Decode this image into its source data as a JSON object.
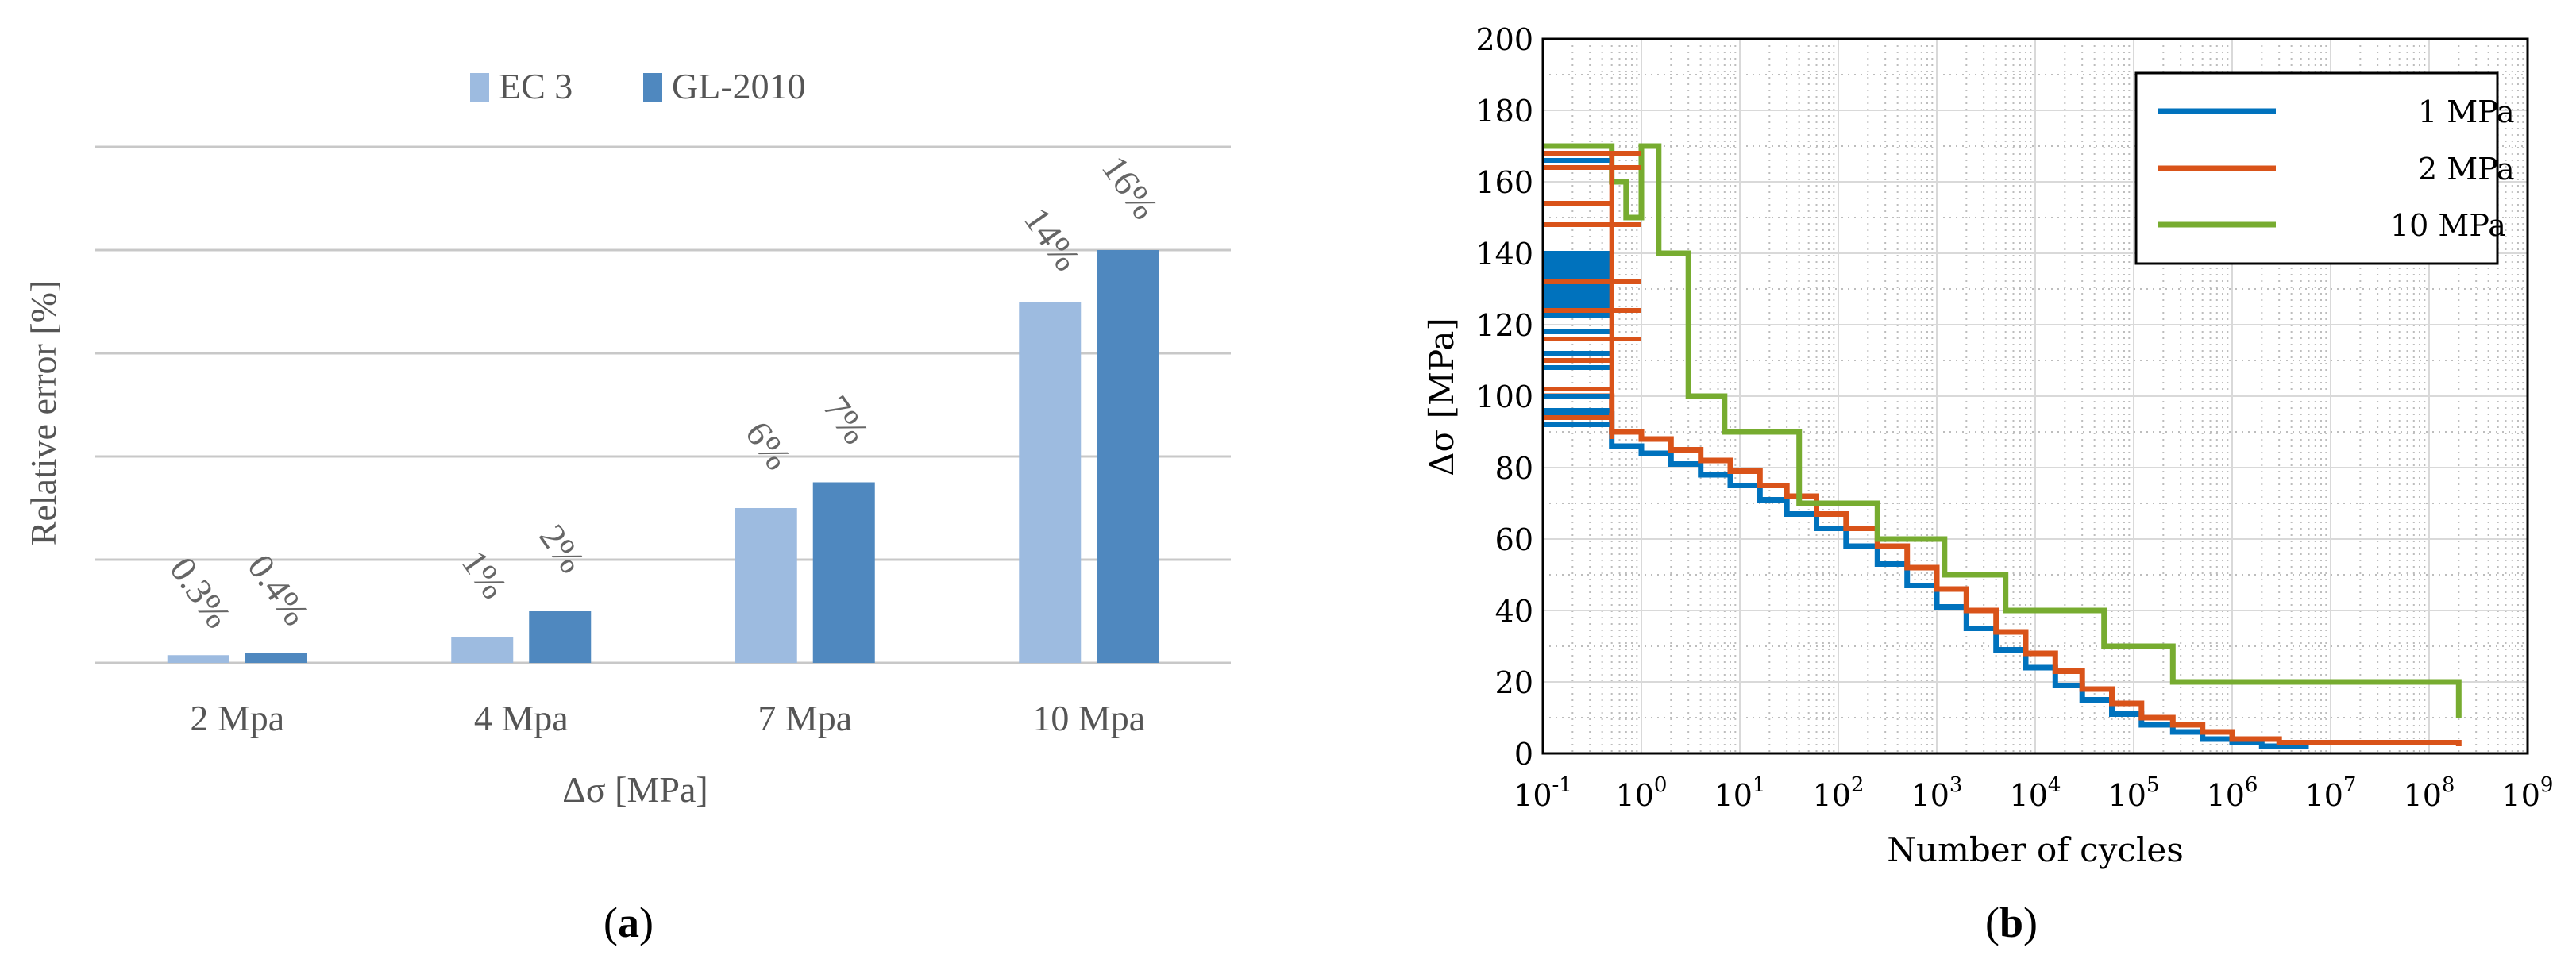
{
  "chart_data": [
    {
      "type": "bar",
      "panel_label": "a",
      "title": "",
      "xlabel": "Δσ [MPa]",
      "ylabel": "Relative error [%]",
      "ylim": [
        0,
        20
      ],
      "gridlines": [
        0,
        4,
        8,
        12,
        16,
        20
      ],
      "categories": [
        "2 Mpa",
        "4 Mpa",
        "7 Mpa",
        "10 Mpa"
      ],
      "legend_position": "top-center",
      "series": [
        {
          "name": "EC 3",
          "color": "#9dbbe0",
          "values": [
            0.3,
            1,
            6,
            14
          ],
          "labels": [
            "0.3%",
            "1%",
            "6%",
            "14%"
          ]
        },
        {
          "name": "GL-2010",
          "color": "#4f88bf",
          "values": [
            0.4,
            2,
            7,
            16
          ],
          "labels": [
            "0.4%",
            "2%",
            "7%",
            "16%"
          ]
        }
      ]
    },
    {
      "type": "line",
      "panel_label": "b",
      "xlabel": "Number of cycles",
      "ylabel": "Δσ [MPa]",
      "xscale": "log",
      "xlim": [
        0.1,
        1000000000
      ],
      "ylim": [
        0,
        200
      ],
      "xtick_exponents": [
        "-1",
        "0",
        "1",
        "2",
        "3",
        "4",
        "5",
        "6",
        "7",
        "8",
        "9"
      ],
      "xtick_base": "10",
      "yticks": [
        0,
        20,
        40,
        60,
        80,
        100,
        120,
        140,
        160,
        180,
        200
      ],
      "grid": true,
      "legend_position": "top-right",
      "series": [
        {
          "name": "1 MPa",
          "color": "#0072bd",
          "x": [
            0.1,
            0.5,
            0.5,
            1,
            2,
            4,
            8,
            16,
            30,
            60,
            120,
            250,
            500,
            1000,
            2000,
            4000,
            8000,
            16000,
            30000,
            60000,
            120000,
            250000,
            500000,
            1000000,
            2000000,
            6000000
          ],
          "y": [
            95,
            95,
            86,
            84,
            81,
            78,
            75,
            71,
            67,
            63,
            58,
            53,
            47,
            41,
            35,
            29,
            24,
            19,
            15,
            11,
            8,
            6,
            4,
            3,
            2,
            2
          ]
        },
        {
          "name": "2 MPa",
          "color": "#d95319",
          "x": [
            0.1,
            0.5,
            0.5,
            1,
            2,
            4,
            8,
            16,
            30,
            60,
            120,
            250,
            500,
            1000,
            2000,
            4000,
            8000,
            16000,
            30000,
            60000,
            120000,
            250000,
            500000,
            1000000,
            3000000,
            200000000
          ],
          "y": [
            100,
            100,
            90,
            88,
            85,
            82,
            79,
            75,
            72,
            67,
            63,
            58,
            52,
            46,
            40,
            34,
            28,
            23,
            18,
            14,
            10,
            8,
            6,
            4,
            3,
            2
          ]
        },
        {
          "name": "10 MPa",
          "color": "#77ac30",
          "x": [
            0.1,
            0.5,
            0.5,
            0.7,
            0.7,
            1,
            1,
            1.5,
            1.5,
            3,
            3,
            7,
            7,
            40,
            40,
            250,
            250,
            1200,
            1200,
            5000,
            5000,
            50000,
            50000,
            250000,
            250000,
            200000000,
            200000000
          ],
          "y": [
            170,
            170,
            160,
            160,
            150,
            150,
            170,
            170,
            140,
            140,
            100,
            100,
            90,
            90,
            70,
            70,
            60,
            60,
            50,
            50,
            40,
            40,
            30,
            30,
            20,
            20,
            10
          ]
        }
      ]
    }
  ],
  "panel_a_label": "a",
  "panel_b_label": "b"
}
